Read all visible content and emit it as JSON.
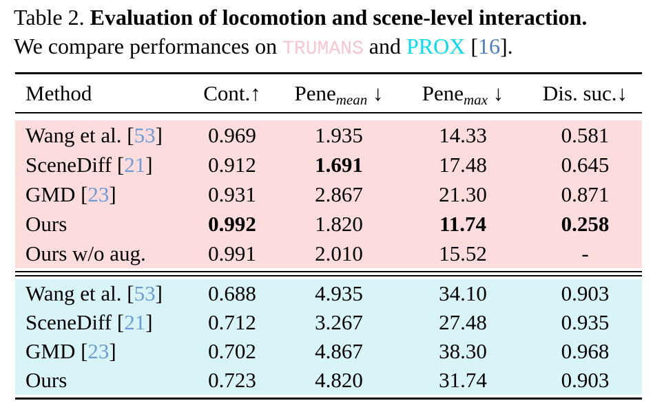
{
  "caption": {
    "line1_prefix": "Table 2. ",
    "line1_bold": "Evaluation of locomotion and scene-level interaction.",
    "line2_prefix": "We compare performances on ",
    "dataset1": "TRUMANS",
    "line2_and": " and ",
    "dataset2": "PROX",
    "cite_open": " [",
    "cite_num": "16",
    "cite_close": "]."
  },
  "colors": {
    "trumans_text": "#f8c6d0",
    "prox_text": "#00ddf0",
    "citation_blue_caption": "#4a7dc4",
    "citation_blue_table": "#6b9cd6",
    "group_trumans_bg": "#fcdcdc",
    "group_prox_bg": "#d9f4f6",
    "rule_color": "#000000"
  },
  "table": {
    "header": [
      {
        "base": "Method",
        "sub": "",
        "arrow": ""
      },
      {
        "base": "Cont.",
        "sub": "",
        "arrow": "↑"
      },
      {
        "base": "Pene",
        "sub": "mean",
        "arrow": " ↓"
      },
      {
        "base": "Pene",
        "sub": "max",
        "arrow": " ↓"
      },
      {
        "base": "Dis. suc.",
        "sub": "",
        "arrow": "↓"
      }
    ],
    "groups": [
      {
        "dataset": "TRUMANS",
        "rows": [
          {
            "method": "Wang et al. ",
            "open": "[",
            "cite": "53",
            "close": "]",
            "values": [
              "0.969",
              "1.935",
              "14.33",
              "0.581"
            ]
          },
          {
            "method": "SceneDiff ",
            "open": "[",
            "cite": "21",
            "close": "]",
            "values": [
              "0.912",
              "1.691",
              "17.48",
              "0.645"
            ]
          },
          {
            "method": "GMD ",
            "open": "[",
            "cite": "23",
            "close": "]",
            "values": [
              "0.931",
              "2.867",
              "21.30",
              "0.871"
            ]
          },
          {
            "method": "Ours",
            "open": "",
            "cite": "",
            "close": "",
            "values": [
              "0.992",
              "1.820",
              "11.74",
              "0.258"
            ]
          },
          {
            "method": "Ours w/o aug.",
            "open": "",
            "cite": "",
            "close": "",
            "values": [
              "0.991",
              "2.010",
              "15.52",
              "-"
            ]
          }
        ]
      },
      {
        "dataset": "PROX",
        "rows": [
          {
            "method": "Wang et al. ",
            "open": "[",
            "cite": "53",
            "close": "]",
            "values": [
              "0.688",
              "4.935",
              "34.10",
              "0.903"
            ]
          },
          {
            "method": "SceneDiff ",
            "open": "[",
            "cite": "21",
            "close": "]",
            "values": [
              "0.712",
              "3.267",
              "27.48",
              "0.935"
            ]
          },
          {
            "method": "GMD ",
            "open": "[",
            "cite": "23",
            "close": "]",
            "values": [
              "0.702",
              "4.867",
              "38.30",
              "0.968"
            ]
          },
          {
            "method": "Ours",
            "open": "",
            "cite": "",
            "close": "",
            "values": [
              "0.723",
              "4.820",
              "31.74",
              "0.903"
            ]
          }
        ]
      }
    ]
  }
}
